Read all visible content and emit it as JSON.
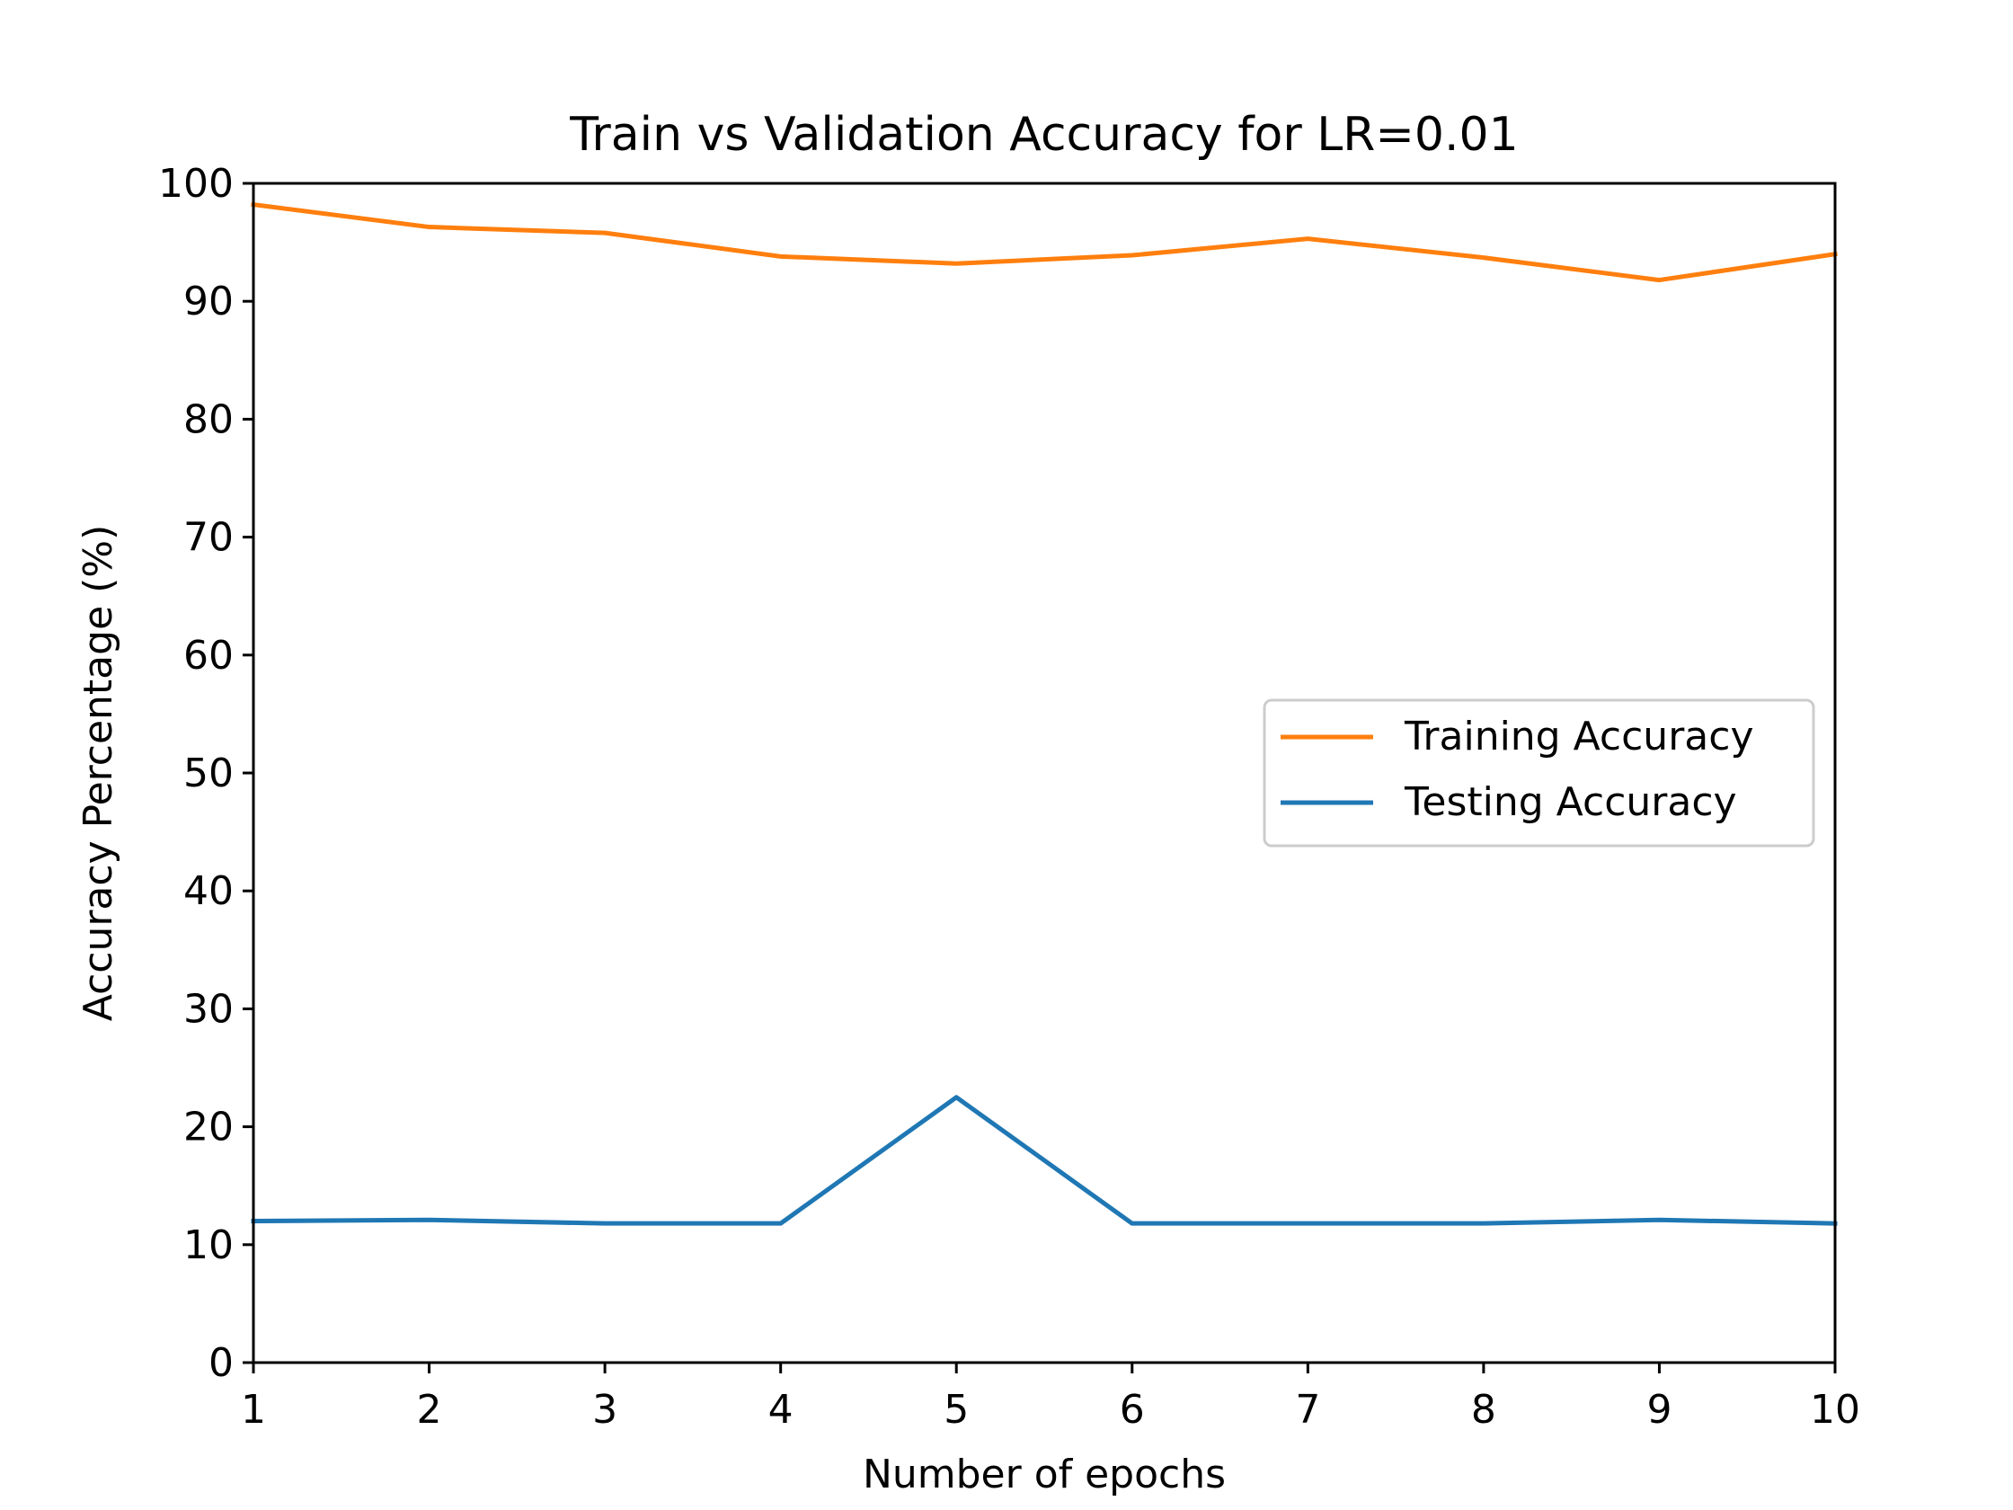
{
  "chart_data": {
    "type": "line",
    "title": "Train vs Validation Accuracy for LR=0.01",
    "xlabel": "Number of epochs",
    "ylabel": "Accuracy Percentage (%)",
    "x": [
      1,
      2,
      3,
      4,
      5,
      6,
      7,
      8,
      9,
      10
    ],
    "xlim": [
      1,
      10
    ],
    "ylim": [
      0,
      100
    ],
    "xticks": [
      1,
      2,
      3,
      4,
      5,
      6,
      7,
      8,
      9,
      10
    ],
    "yticks": [
      0,
      10,
      20,
      30,
      40,
      50,
      60,
      70,
      80,
      90,
      100
    ],
    "grid": false,
    "legend_position": "center-right",
    "series": [
      {
        "name": "Training Accuracy",
        "color": "#ff7f0e",
        "values": [
          98.2,
          96.3,
          95.8,
          93.8,
          93.2,
          93.9,
          95.3,
          93.7,
          91.8,
          94.0
        ]
      },
      {
        "name": "Testing Accuracy",
        "color": "#1f77b4",
        "values": [
          12.0,
          12.1,
          11.8,
          11.8,
          22.5,
          11.8,
          11.8,
          11.8,
          12.1,
          11.8
        ]
      }
    ]
  }
}
